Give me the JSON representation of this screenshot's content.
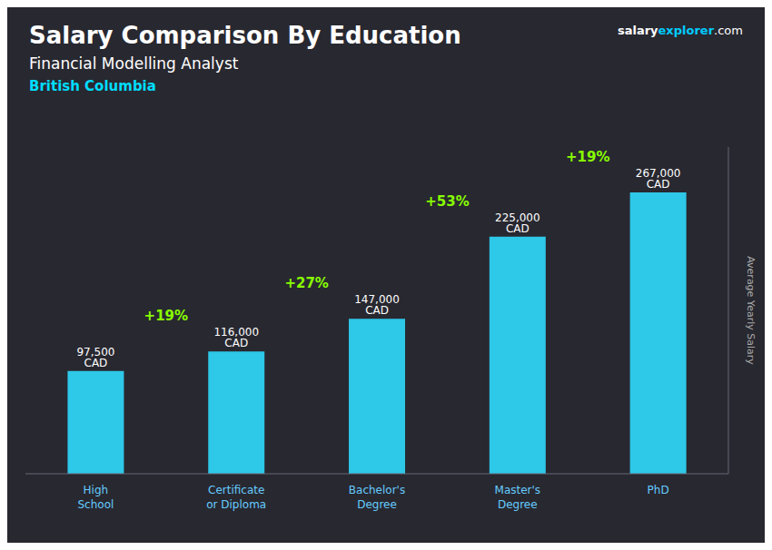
{
  "chart_data": {
    "type": "bar",
    "title": "Salary Comparison By Education",
    "subtitle": "Financial Modelling Analyst",
    "location": "British Columbia",
    "brand": [
      "salary",
      "explorer",
      ".com"
    ],
    "ylabel": "Average Yearly Salary",
    "categories": [
      "High\nSchool",
      "Certificate\nor Diploma",
      "Bachelor's\nDegree",
      "Master's\nDegree",
      "PhD"
    ],
    "values": [
      97500,
      116000,
      147000,
      225000,
      267000
    ],
    "value_labels": [
      "97,500 CAD",
      "116,000 CAD",
      "147,000 CAD",
      "225,000 CAD",
      "267,000 CAD"
    ],
    "annotations": [
      "+19%",
      "+27%",
      "+53%",
      "+19%"
    ],
    "color": "#2ec8e8",
    "ylim": [
      0,
      310000
    ],
    "data_labels": true,
    "tick_labels": "x",
    "grid": false
  }
}
